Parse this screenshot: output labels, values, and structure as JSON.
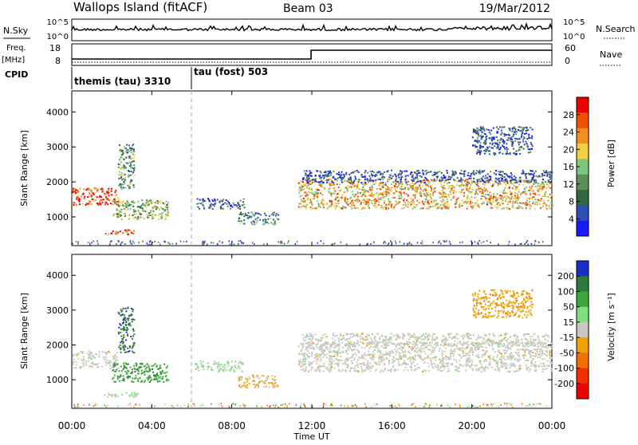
{
  "header": {
    "station": "Wallops Island (fitACF)",
    "beam": "Beam 03",
    "date": "19/Mar/2012"
  },
  "strip_labels": {
    "nsky": "N.Sky",
    "nsearch": "N.Search",
    "freq_top": "Freq.",
    "freq_unit": "[MHz]",
    "nave": "Nave",
    "cpid": "CPID",
    "ytick_hi": "10^5",
    "ytick_lo": "10^0",
    "freq_ticks": [
      "18",
      "8"
    ],
    "nave_ticks": [
      "60",
      "0"
    ]
  },
  "cpid_segments": [
    {
      "label": "themis (tau) 3310"
    },
    {
      "label": "tau (fost) 503"
    }
  ],
  "colors": {
    "power": [
      "#1a1aff",
      "#2f4fb6",
      "#2f6a3f",
      "#5a8f5a",
      "#7dc87d",
      "#f0d040",
      "#f09020",
      "#f05000",
      "#f00000"
    ],
    "velocity": [
      "#1a2fc8",
      "#2f7a3a",
      "#3aa83a",
      "#7de07d",
      "#c8c8c0",
      "#f0a000",
      "#f07000",
      "#f03000",
      "#f00000"
    ]
  },
  "chart_data": [
    {
      "type": "heatmap",
      "title": "",
      "ylabel": "Slant Range [km]",
      "xlabel": "",
      "xlim": [
        0,
        24
      ],
      "ylim": [
        180,
        4600
      ],
      "colorbar": {
        "label": "Power [dB]",
        "ticks": [
          "4",
          "8",
          "12",
          "16",
          "20",
          "24",
          "28"
        ],
        "range": [
          0,
          30
        ]
      },
      "xticks": [
        "00:00",
        "04:00",
        "08:00",
        "12:00",
        "16:00",
        "20:00",
        "00:00"
      ],
      "yticks": [
        "1000",
        "2000",
        "3000",
        "4000"
      ],
      "echo_bands": [
        {
          "t0": 0.0,
          "t1": 2.3,
          "r0": 1350,
          "r1": 1850,
          "level": 26
        },
        {
          "t0": 2.0,
          "t1": 4.8,
          "r0": 950,
          "r1": 1500,
          "level": 14
        },
        {
          "t0": 1.5,
          "t1": 3.3,
          "r0": 520,
          "r1": 650,
          "level": 22
        },
        {
          "t0": 2.3,
          "t1": 3.1,
          "r0": 1800,
          "r1": 3100,
          "level": 12
        },
        {
          "t0": 6.1,
          "t1": 8.6,
          "r0": 1250,
          "r1": 1550,
          "level": 6
        },
        {
          "t0": 8.3,
          "t1": 10.3,
          "r0": 800,
          "r1": 1150,
          "level": 10
        },
        {
          "t0": 11.3,
          "t1": 24.0,
          "r0": 1250,
          "r1": 2100,
          "level": 20
        },
        {
          "t0": 11.5,
          "t1": 24.0,
          "r0": 2000,
          "r1": 2350,
          "level": 6
        },
        {
          "t0": 20.0,
          "t1": 23.0,
          "r0": 2800,
          "r1": 3600,
          "level": 6
        }
      ]
    },
    {
      "type": "heatmap",
      "title": "",
      "ylabel": "Slant Range [km]",
      "xlabel": "Time UT",
      "xlim": [
        0,
        24
      ],
      "ylim": [
        180,
        4600
      ],
      "colorbar": {
        "label": "Velocity [m s⁻¹]",
        "ticks": [
          "200",
          "100",
          "50",
          "15",
          "-15",
          "-50",
          "-100",
          "-200"
        ],
        "range": [
          -250,
          250
        ]
      },
      "xticks": [
        "00:00",
        "04:00",
        "08:00",
        "12:00",
        "16:00",
        "20:00",
        "00:00"
      ],
      "yticks": [
        "1000",
        "2000",
        "3000",
        "4000"
      ],
      "echo_bands": [
        {
          "t0": 0.0,
          "t1": 2.3,
          "r0": 1350,
          "r1": 1850,
          "level": 0
        },
        {
          "t0": 2.0,
          "t1": 4.8,
          "r0": 950,
          "r1": 1500,
          "level": 120
        },
        {
          "t0": 1.5,
          "t1": 3.3,
          "r0": 520,
          "r1": 650,
          "level": 40
        },
        {
          "t0": 2.3,
          "t1": 3.1,
          "r0": 1800,
          "r1": 3100,
          "level": 180
        },
        {
          "t0": 6.1,
          "t1": 8.6,
          "r0": 1250,
          "r1": 1550,
          "level": 40
        },
        {
          "t0": 8.3,
          "t1": 10.3,
          "r0": 800,
          "r1": 1150,
          "level": -40
        },
        {
          "t0": 11.3,
          "t1": 24.0,
          "r0": 1250,
          "r1": 2100,
          "level": 0
        },
        {
          "t0": 11.5,
          "t1": 24.0,
          "r0": 2000,
          "r1": 2350,
          "level": 0
        },
        {
          "t0": 20.0,
          "t1": 23.0,
          "r0": 2800,
          "r1": 3600,
          "level": -60
        }
      ]
    }
  ]
}
